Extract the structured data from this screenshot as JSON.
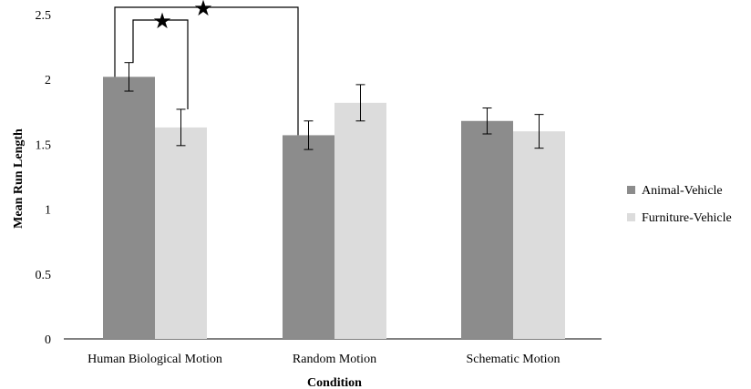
{
  "chart_data": {
    "type": "bar",
    "title": "",
    "xlabel": "Condition",
    "ylabel": "Mean Run Length",
    "ylim": [
      0,
      2.5
    ],
    "yticks": [
      "0",
      "0.5",
      "1",
      "1.5",
      "2",
      "2.5"
    ],
    "categories": [
      "Human Biological Motion",
      "Random Motion",
      "Schematic Motion"
    ],
    "series": [
      {
        "name": "Animal-Vehicle",
        "color": "#8c8c8c",
        "values": [
          2.02,
          1.57,
          1.68
        ],
        "errors": [
          0.11,
          0.11,
          0.1
        ]
      },
      {
        "name": "Furniture-Vehicle",
        "color": "#dcdcdc",
        "values": [
          1.63,
          1.82,
          1.6
        ],
        "errors": [
          0.14,
          0.14,
          0.13
        ]
      }
    ],
    "significance_markers": [
      "★",
      "★"
    ],
    "legend_position": "right",
    "grid": false
  }
}
